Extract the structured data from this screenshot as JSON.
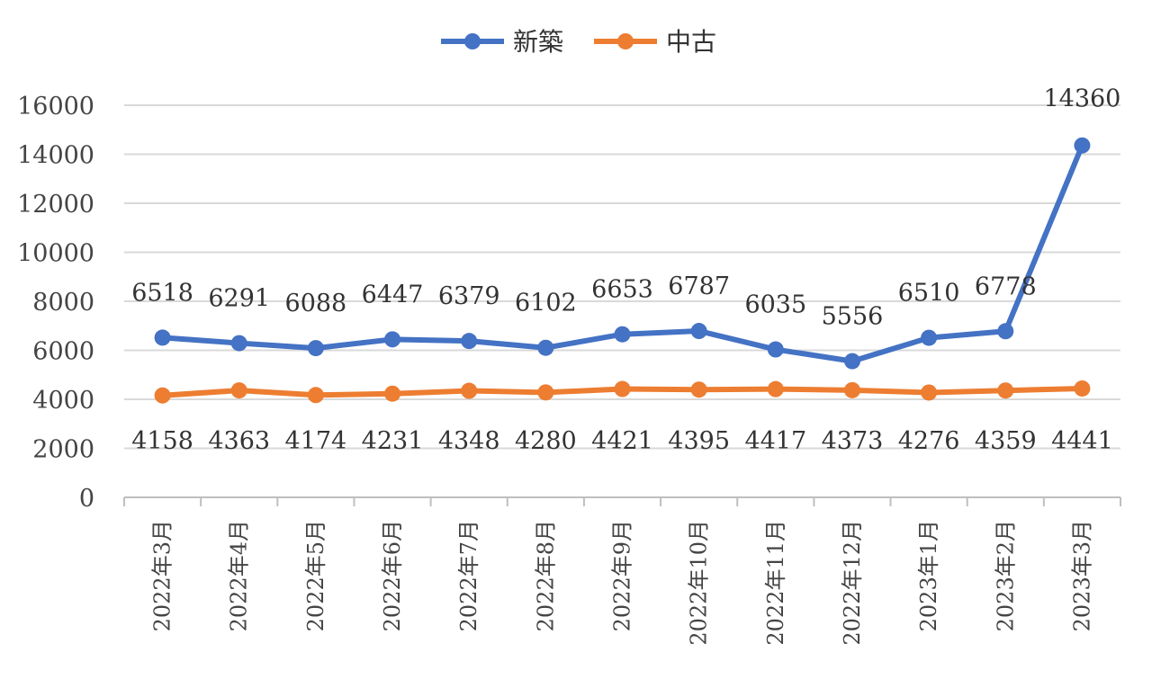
{
  "chart_data": {
    "type": "line",
    "categories": [
      "2022年3月",
      "2022年4月",
      "2022年5月",
      "2022年6月",
      "2022年7月",
      "2022年8月",
      "2022年9月",
      "2022年10月",
      "2022年11月",
      "2022年12月",
      "2023年1月",
      "2023年2月",
      "2023年3月"
    ],
    "series": [
      {
        "name": "新築",
        "color": "#4472C4",
        "values": [
          6518,
          6291,
          6088,
          6447,
          6379,
          6102,
          6653,
          6787,
          6035,
          5556,
          6510,
          6778,
          14360
        ]
      },
      {
        "name": "中古",
        "color": "#ED7D31",
        "values": [
          4158,
          4363,
          4174,
          4231,
          4348,
          4280,
          4421,
          4395,
          4417,
          4373,
          4276,
          4359,
          4441
        ]
      }
    ],
    "ylim": [
      0,
      16000
    ],
    "yticks": [
      0,
      2000,
      4000,
      6000,
      8000,
      10000,
      12000,
      14000,
      16000
    ],
    "grid": true,
    "legend_position": "top-center",
    "data_labels": true
  }
}
